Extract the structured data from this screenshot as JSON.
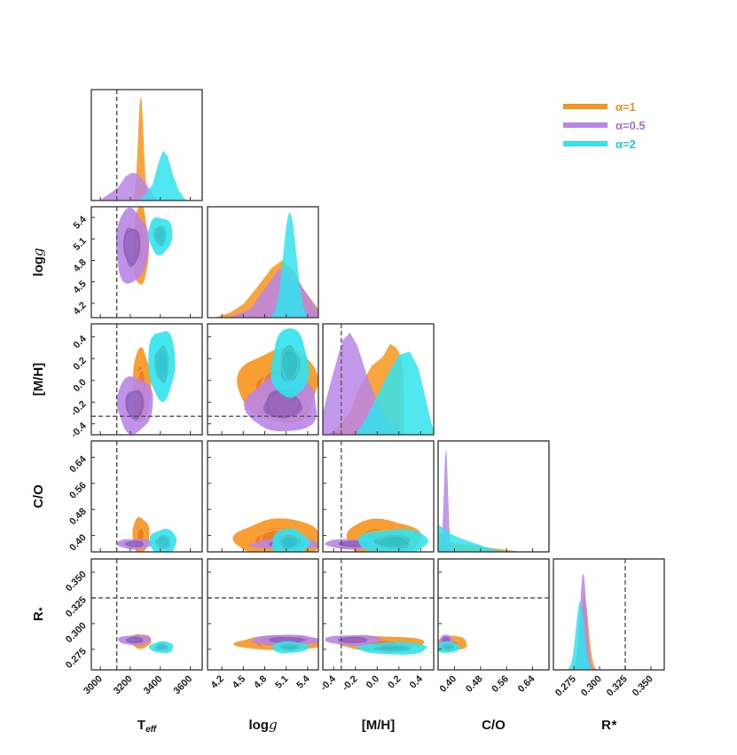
{
  "chart_data": {
    "type": "corner",
    "title": "",
    "parameters": [
      {
        "key": "teff",
        "label": "T_eff",
        "range": [
          2940,
          3680
        ],
        "ticks": [
          "3000",
          "3200",
          "3400",
          "3600"
        ],
        "tick_values": [
          3000,
          3200,
          3400,
          3600
        ],
        "truth": 3110
      },
      {
        "key": "logg",
        "label": "log g",
        "range": [
          4.0,
          5.55
        ],
        "ticks": [
          "4.2",
          "4.5",
          "4.8",
          "5.1",
          "5.4"
        ],
        "tick_values": [
          4.2,
          4.5,
          4.8,
          5.1,
          5.4
        ],
        "truth": null
      },
      {
        "key": "mh",
        "label": "[M/H]",
        "range": [
          -0.5,
          0.52
        ],
        "ticks": [
          "-0.4",
          "-0.2",
          "0.0",
          "0.2",
          "0.4"
        ],
        "tick_values": [
          -0.4,
          -0.2,
          0.0,
          0.2,
          0.4
        ],
        "truth": -0.33
      },
      {
        "key": "co",
        "label": "C/O",
        "range": [
          0.35,
          0.69
        ],
        "ticks": [
          "0.40",
          "0.48",
          "0.56",
          "0.64"
        ],
        "tick_values": [
          0.4,
          0.48,
          0.56,
          0.64
        ],
        "truth": null
      },
      {
        "key": "rstar",
        "label": "R*",
        "range": [
          0.255,
          0.363
        ],
        "ticks": [
          "0.275",
          "0.300",
          "0.325",
          "0.350"
        ],
        "tick_values": [
          0.275,
          0.3,
          0.325,
          0.35
        ],
        "truth": 0.325
      }
    ],
    "series": [
      {
        "name": "α=1",
        "color": "#F7941D",
        "dark": "#E8650C",
        "line": "#F4A34A",
        "marginals": [
          {
            "type": "gauss",
            "mean": 3270,
            "sd": 18,
            "height": 0.95
          },
          {
            "type": "poly",
            "pts": [
              [
                4.1,
                0
              ],
              [
                4.3,
                0.04
              ],
              [
                4.5,
                0.12
              ],
              [
                4.7,
                0.28
              ],
              [
                4.9,
                0.45
              ],
              [
                5.05,
                0.52
              ],
              [
                5.2,
                0.42
              ],
              [
                5.35,
                0.25
              ],
              [
                5.5,
                0.12
              ],
              [
                5.55,
                0.08
              ]
            ]
          },
          {
            "type": "poly",
            "pts": [
              [
                -0.45,
                0
              ],
              [
                -0.35,
                0.08
              ],
              [
                -0.25,
                0.2
              ],
              [
                -0.15,
                0.45
              ],
              [
                -0.05,
                0.62
              ],
              [
                0.05,
                0.7
              ],
              [
                0.12,
                0.82
              ],
              [
                0.18,
                0.78
              ],
              [
                0.22,
                0.7
              ],
              [
                0.24,
                0.55
              ],
              [
                0.245,
                0
              ]
            ]
          },
          {
            "type": "poly",
            "pts": [
              [
                0.35,
                0.18
              ],
              [
                0.36,
                0.16
              ],
              [
                0.38,
                0.1
              ],
              [
                0.4,
                0.08
              ],
              [
                0.45,
                0.06
              ],
              [
                0.5,
                0.04
              ],
              [
                0.55,
                0.02
              ],
              [
                0.58,
                0.01
              ],
              [
                0.6,
                0
              ]
            ]
          },
          {
            "type": "gauss",
            "mean": 0.285,
            "sd": 0.004,
            "height": 0.68
          }
        ],
        "joint": [
          {
            "x": "teff",
            "y": "logg",
            "cx": 3270,
            "cy": 5.0,
            "sx": 25,
            "sy": 0.28
          },
          {
            "x": "teff",
            "y": "mh",
            "cx": 3275,
            "cy": -0.05,
            "sx": 30,
            "sy": 0.17
          },
          {
            "x": "teff",
            "y": "co",
            "cx": 3270,
            "cy": 0.4,
            "sx": 28,
            "sy": 0.028
          },
          {
            "x": "teff",
            "y": "rstar",
            "cx": 3270,
            "cy": 0.283,
            "sx": 35,
            "sy": 0.0035
          },
          {
            "x": "logg",
            "y": "mh",
            "cx": 5.0,
            "cy": -0.05,
            "sx": 0.28,
            "sy": 0.17
          },
          {
            "x": "logg",
            "y": "co",
            "cx": 5.0,
            "cy": 0.39,
            "sx": 0.3,
            "sy": 0.03
          },
          {
            "x": "logg",
            "y": "rstar",
            "cx": 5.0,
            "cy": 0.281,
            "sx": 0.3,
            "sy": 0.0035
          },
          {
            "x": "mh",
            "y": "co",
            "cx": 0.05,
            "cy": 0.39,
            "sx": 0.17,
            "sy": 0.03
          },
          {
            "x": "mh",
            "y": "rstar",
            "cx": 0.03,
            "cy": 0.281,
            "sx": 0.2,
            "sy": 0.0035
          },
          {
            "x": "co",
            "y": "rstar",
            "cx": 0.39,
            "cy": 0.281,
            "sx": 0.025,
            "sy": 0.0035
          }
        ]
      },
      {
        "name": "α=0.5",
        "color": "#B985E6",
        "dark": "#7B4FA8",
        "line": "#8E63BC",
        "marginals": [
          {
            "type": "poly",
            "pts": [
              [
                2995,
                0
              ],
              [
                3050,
                0.05
              ],
              [
                3120,
                0.12
              ],
              [
                3170,
                0.22
              ],
              [
                3210,
                0.25
              ],
              [
                3250,
                0.24
              ],
              [
                3300,
                0.16
              ],
              [
                3350,
                0.06
              ],
              [
                3380,
                0
              ]
            ]
          },
          {
            "type": "poly",
            "pts": [
              [
                4.3,
                0
              ],
              [
                4.6,
                0.08
              ],
              [
                4.8,
                0.26
              ],
              [
                5.0,
                0.44
              ],
              [
                5.15,
                0.42
              ],
              [
                5.3,
                0.3
              ],
              [
                5.45,
                0.15
              ],
              [
                5.55,
                0.06
              ]
            ]
          },
          {
            "type": "poly",
            "pts": [
              [
                -0.5,
                0.2
              ],
              [
                -0.42,
                0.5
              ],
              [
                -0.32,
                0.85
              ],
              [
                -0.25,
                0.92
              ],
              [
                -0.18,
                0.8
              ],
              [
                -0.1,
                0.55
              ],
              [
                0.0,
                0.3
              ],
              [
                0.1,
                0.12
              ],
              [
                0.2,
                0.03
              ],
              [
                0.3,
                0
              ]
            ]
          },
          {
            "type": "gauss",
            "mean": 0.374,
            "sd": 0.006,
            "height": 0.95
          },
          {
            "type": "gauss",
            "mean": 0.284,
            "sd": 0.0032,
            "height": 0.88
          }
        ],
        "joint": [
          {
            "x": "teff",
            "y": "logg",
            "cx": 3210,
            "cy": 5.0,
            "sx": 55,
            "sy": 0.26
          },
          {
            "x": "teff",
            "y": "mh",
            "cx": 3230,
            "cy": -0.22,
            "sx": 60,
            "sy": 0.13
          },
          {
            "x": "teff",
            "y": "co",
            "cx": 3230,
            "cy": 0.374,
            "sx": 60,
            "sy": 0.008
          },
          {
            "x": "teff",
            "y": "rstar",
            "cx": 3230,
            "cy": 0.284,
            "sx": 55,
            "sy": 0.0025
          },
          {
            "x": "logg",
            "y": "mh",
            "cx": 5.05,
            "cy": -0.22,
            "sx": 0.25,
            "sy": 0.13
          },
          {
            "x": "logg",
            "y": "co",
            "cx": 5.1,
            "cy": 0.374,
            "sx": 0.25,
            "sy": 0.008
          },
          {
            "x": "logg",
            "y": "rstar",
            "cx": 5.1,
            "cy": 0.284,
            "sx": 0.25,
            "sy": 0.0025
          },
          {
            "x": "mh",
            "y": "co",
            "cx": -0.22,
            "cy": 0.374,
            "sx": 0.13,
            "sy": 0.008
          },
          {
            "x": "mh",
            "y": "rstar",
            "cx": -0.22,
            "cy": 0.284,
            "sx": 0.13,
            "sy": 0.0025
          },
          {
            "x": "co",
            "y": "rstar",
            "cx": 0.374,
            "cy": 0.284,
            "sx": 0.01,
            "sy": 0.0025
          }
        ]
      },
      {
        "name": "α=2",
        "color": "#31E3ED",
        "dark": "#23ADB8",
        "line": "#4FC6CC",
        "marginals": [
          {
            "type": "poly",
            "pts": [
              [
                3250,
                0
              ],
              [
                3300,
                0.05
              ],
              [
                3350,
                0.15
              ],
              [
                3390,
                0.35
              ],
              [
                3420,
                0.45
              ],
              [
                3450,
                0.4
              ],
              [
                3480,
                0.25
              ],
              [
                3520,
                0.1
              ],
              [
                3560,
                0.02
              ],
              [
                3580,
                0
              ]
            ]
          },
          {
            "type": "gauss",
            "mean": 5.15,
            "sd": 0.09,
            "height": 0.95
          },
          {
            "type": "poly",
            "pts": [
              [
                -0.2,
                0
              ],
              [
                -0.1,
                0.15
              ],
              [
                0.0,
                0.35
              ],
              [
                0.1,
                0.55
              ],
              [
                0.2,
                0.72
              ],
              [
                0.3,
                0.75
              ],
              [
                0.38,
                0.6
              ],
              [
                0.44,
                0.35
              ],
              [
                0.5,
                0.1
              ],
              [
                0.52,
                0.05
              ]
            ]
          },
          {
            "type": "poly",
            "pts": [
              [
                0.35,
                0.25
              ],
              [
                0.37,
                0.2
              ],
              [
                0.39,
                0.16
              ],
              [
                0.42,
                0.12
              ],
              [
                0.46,
                0.08
              ],
              [
                0.5,
                0.04
              ],
              [
                0.54,
                0.01
              ],
              [
                0.57,
                0
              ]
            ]
          },
          {
            "type": "gauss",
            "mean": 0.281,
            "sd": 0.004,
            "height": 0.62
          }
        ],
        "joint": [
          {
            "x": "teff",
            "y": "logg",
            "cx": 3400,
            "cy": 5.15,
            "sx": 40,
            "sy": 0.13
          },
          {
            "x": "teff",
            "y": "mh",
            "cx": 3410,
            "cy": 0.15,
            "sx": 45,
            "sy": 0.16
          },
          {
            "x": "teff",
            "y": "co",
            "cx": 3420,
            "cy": 0.38,
            "sx": 45,
            "sy": 0.02
          },
          {
            "x": "teff",
            "y": "rstar",
            "cx": 3410,
            "cy": 0.277,
            "sx": 40,
            "sy": 0.0028
          },
          {
            "x": "logg",
            "y": "mh",
            "cx": 5.15,
            "cy": 0.15,
            "sx": 0.13,
            "sy": 0.16
          },
          {
            "x": "logg",
            "y": "co",
            "cx": 5.15,
            "cy": 0.38,
            "sx": 0.13,
            "sy": 0.02
          },
          {
            "x": "logg",
            "y": "rstar",
            "cx": 5.15,
            "cy": 0.277,
            "sx": 0.13,
            "sy": 0.0028
          },
          {
            "x": "mh",
            "y": "co",
            "cx": 0.15,
            "cy": 0.38,
            "sx": 0.16,
            "sy": 0.02
          },
          {
            "x": "mh",
            "y": "rstar",
            "cx": 0.15,
            "cy": 0.276,
            "sx": 0.16,
            "sy": 0.003
          },
          {
            "x": "co",
            "y": "rstar",
            "cx": 0.38,
            "cy": 0.277,
            "sx": 0.018,
            "sy": 0.0028
          }
        ]
      }
    ],
    "legend": {
      "position": "top-right"
    }
  },
  "labels": {
    "x_titles": [
      "T",
      "log",
      "[M/H]",
      "C/O",
      "R"
    ],
    "x_title_suffix": [
      "eff",
      "g",
      "",
      "",
      "*"
    ],
    "y_titles": [
      "log",
      "[M/H]",
      "C/O",
      "R"
    ],
    "y_title_suffix": [
      "g",
      "",
      "",
      "*"
    ],
    "legend_labels": [
      "α=1",
      "α=0.5",
      "α=2"
    ]
  }
}
